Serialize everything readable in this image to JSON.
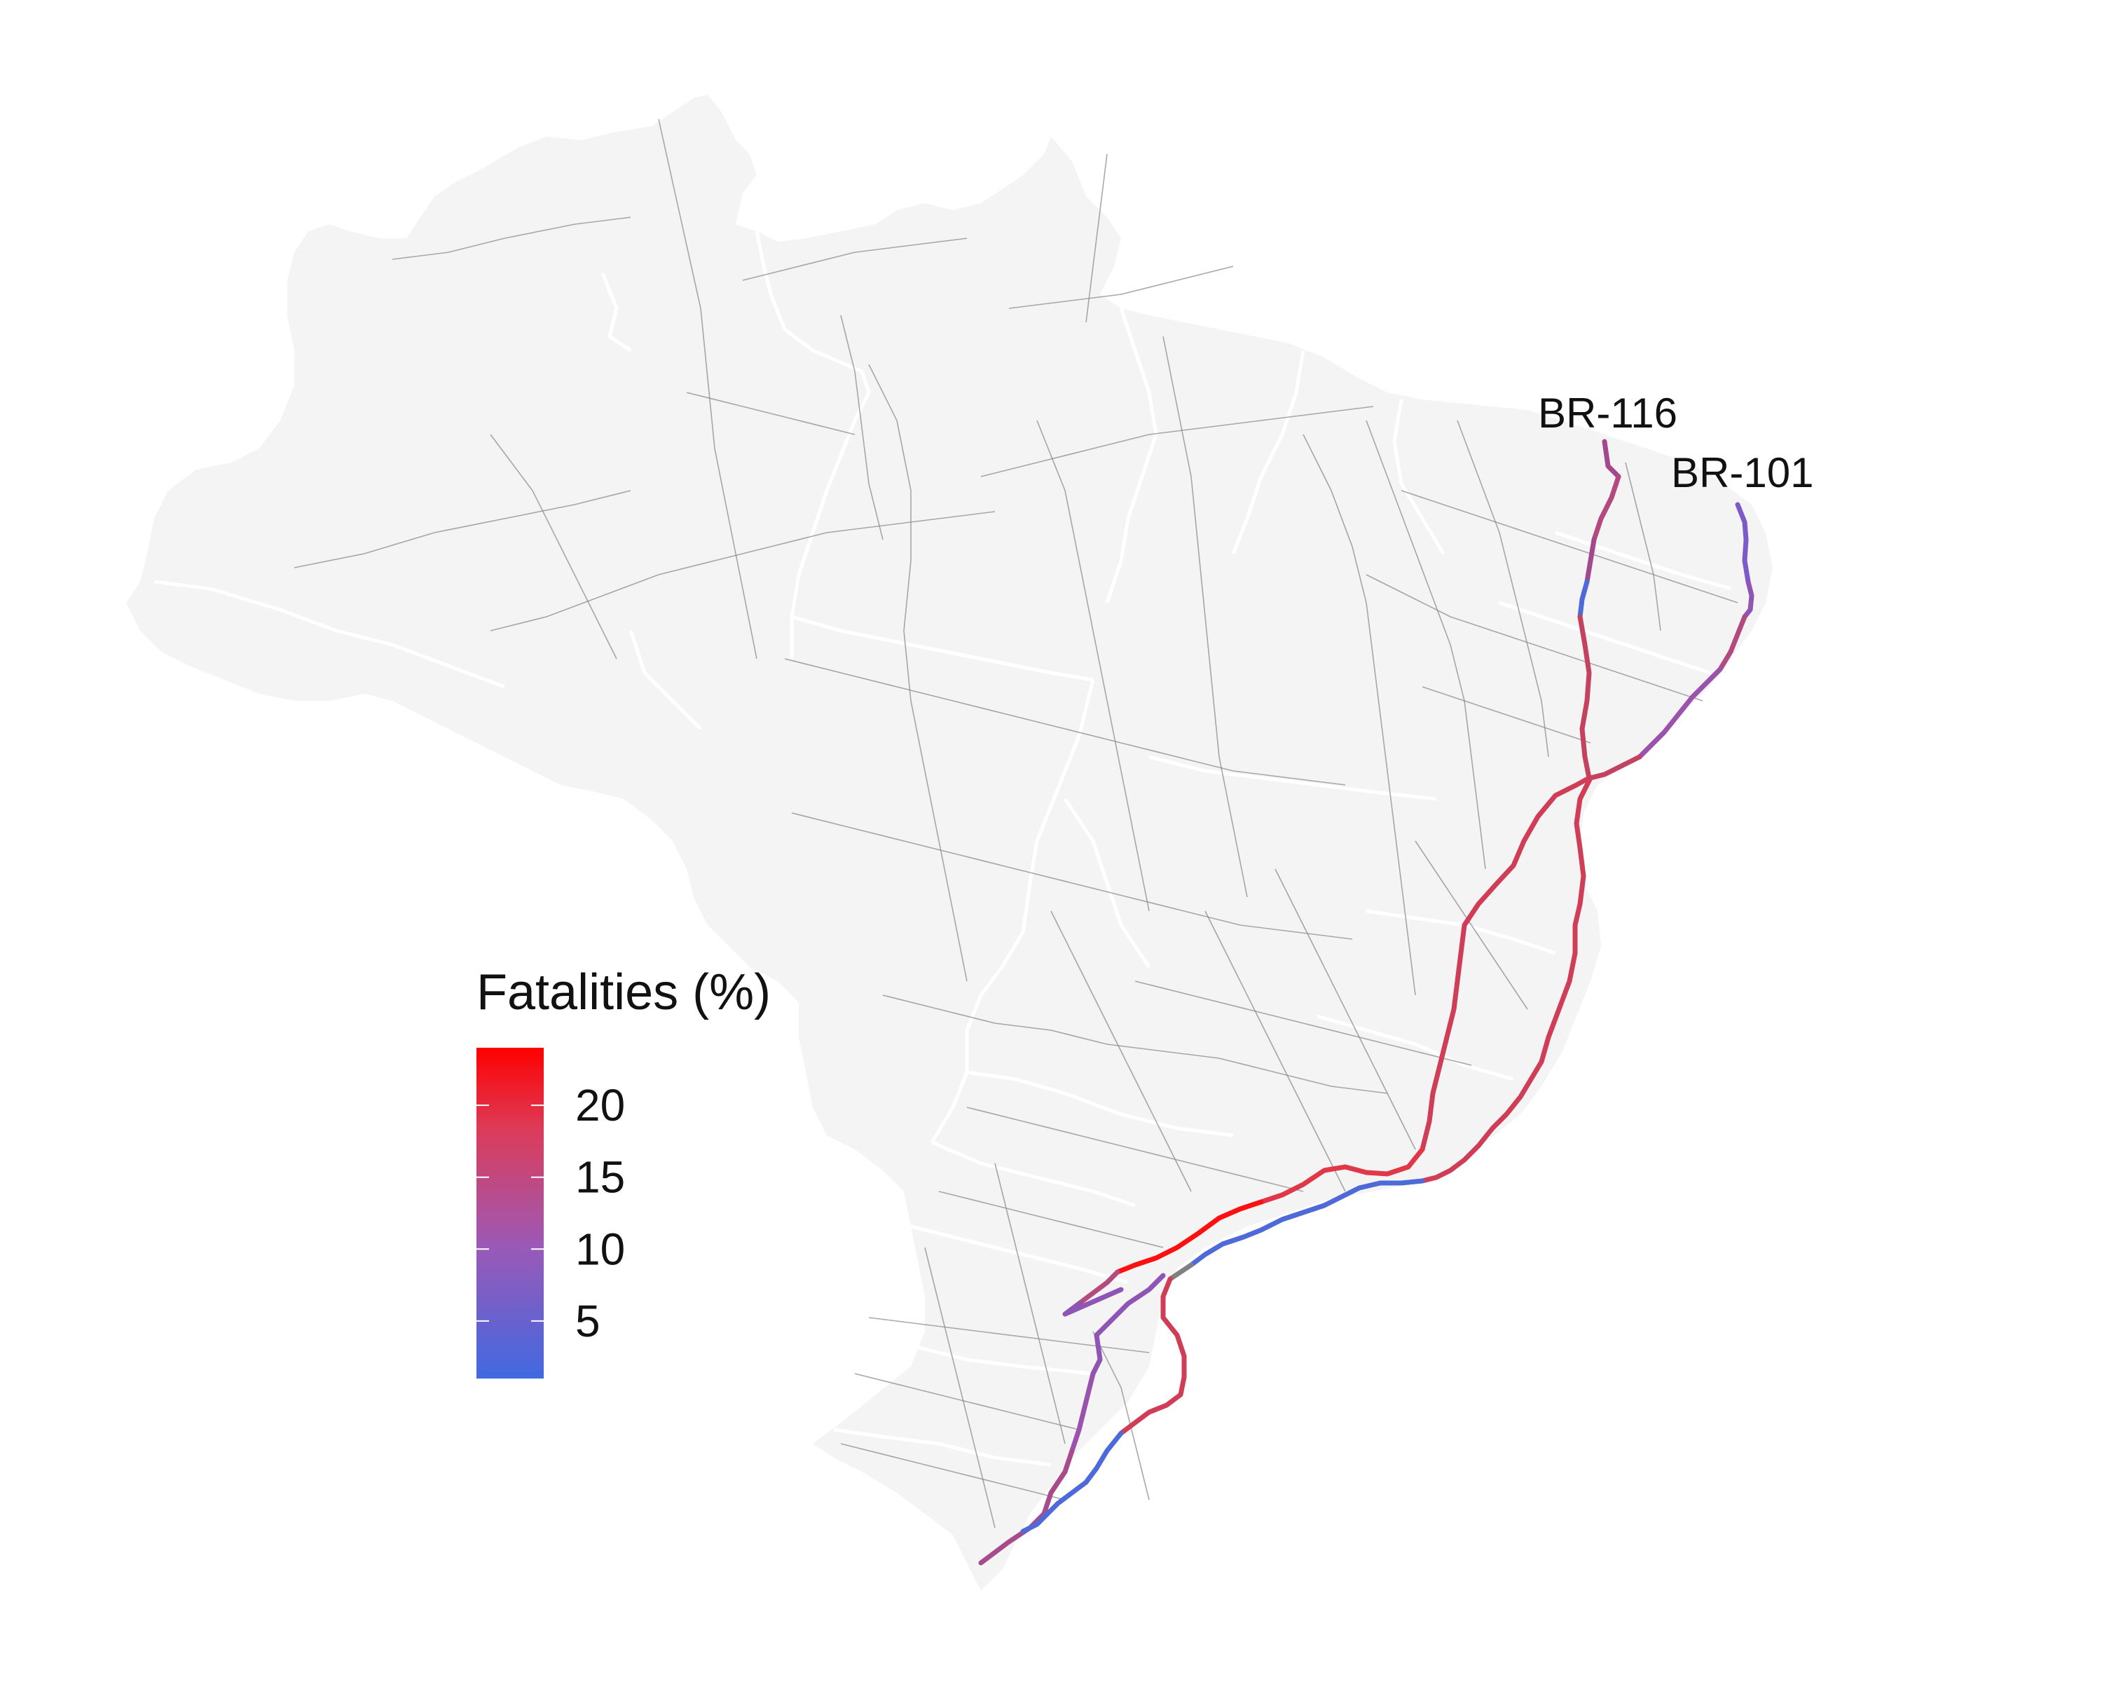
{
  "map": {
    "land_color": "#f4f4f4",
    "border_color": "#ffffff",
    "road_color": "#8c8c8c",
    "highlighted_highways": [
      {
        "id": "br-116",
        "label": "BR-116"
      },
      {
        "id": "br-101",
        "label": "BR-101"
      }
    ]
  },
  "legend": {
    "title": "Fatalities (%)",
    "ticks": [
      "20",
      "15",
      "10",
      "5"
    ],
    "tick_values": [
      20,
      15,
      10,
      5
    ],
    "range": [
      1,
      24
    ],
    "low_color": "#4169e1",
    "mid_color": "#9b59b6",
    "high_color": "#ff0000"
  }
}
